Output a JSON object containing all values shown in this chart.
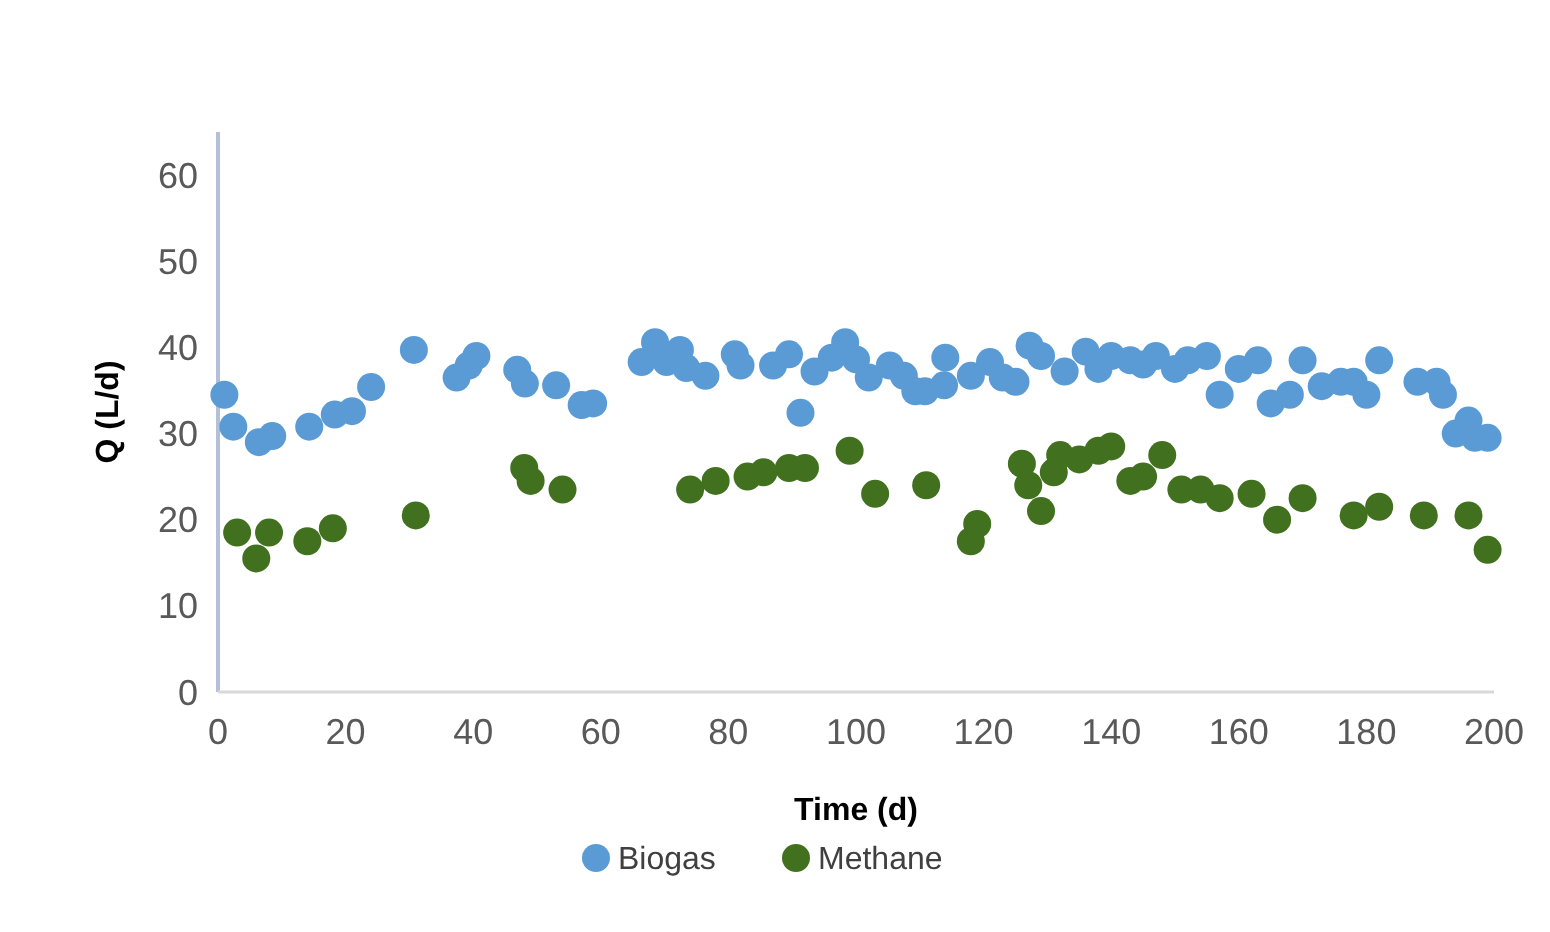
{
  "chart_data": {
    "type": "scatter",
    "xlabel": "Time (d)",
    "ylabel": "Q  (L/d)",
    "xlim": [
      0,
      200
    ],
    "ylim": [
      0,
      65
    ],
    "xticks": [
      0,
      20,
      40,
      60,
      80,
      100,
      120,
      140,
      160,
      180,
      200
    ],
    "yticks": [
      0,
      10,
      20,
      30,
      40,
      50,
      60
    ],
    "grid": false,
    "legend": "bottom",
    "marker": "circle",
    "series": [
      {
        "name": "Biogas",
        "color": "#5b9bd5",
        "x": [
          1,
          2.4,
          6.4,
          8.5,
          14.3,
          18.3,
          21,
          24,
          30.7,
          37.4,
          39.3,
          40.5,
          46.9,
          48.1,
          53,
          57,
          58.8,
          66.4,
          68.5,
          70.3,
          72.4,
          73.4,
          76.4,
          81,
          81.9,
          87,
          89.5,
          91.3,
          93.5,
          96.2,
          98.3,
          100,
          102,
          105.3,
          107.5,
          109.3,
          110.8,
          113.8,
          114,
          118,
          121,
          123,
          125,
          127.2,
          129,
          132.7,
          136,
          138,
          140,
          143,
          145,
          147,
          150,
          152,
          155,
          157,
          160,
          163,
          165,
          168,
          170,
          173,
          176,
          178,
          180,
          182,
          188,
          191,
          192,
          194,
          196,
          197,
          199
        ],
        "values": [
          34.5,
          30.8,
          29,
          29.7,
          30.8,
          32.2,
          32.6,
          35.4,
          39.7,
          36.5,
          37.9,
          39,
          37.4,
          35.8,
          35.6,
          33.3,
          33.5,
          38.3,
          40.6,
          38.3,
          39.7,
          37.6,
          36.7,
          39.2,
          37.9,
          37.9,
          39.2,
          32.4,
          37.2,
          38.8,
          40.6,
          38.6,
          36.5,
          37.9,
          36.7,
          34.9,
          34.9,
          35.6,
          38.8,
          36.7,
          38.3,
          36.5,
          36,
          40.2,
          39,
          37.2,
          39.5,
          37.5,
          39,
          38.5,
          38,
          39,
          37.5,
          38.5,
          39,
          34.5,
          37.5,
          38.5,
          33.5,
          34.5,
          38.5,
          35.5,
          36,
          36,
          34.5,
          38.5,
          36,
          36,
          34.5,
          30,
          31.5,
          29.5,
          29.5
        ]
      },
      {
        "name": "Methane",
        "color": "#41711f",
        "x": [
          3,
          6,
          8,
          14,
          18,
          31,
          48,
          49,
          54,
          74,
          78,
          83,
          85.5,
          89.5,
          92,
          99,
          103,
          111,
          118,
          119,
          126,
          127,
          129,
          131,
          132,
          135,
          138,
          140,
          143,
          145,
          148,
          151,
          154,
          157,
          162,
          166,
          170,
          178,
          182,
          189,
          196,
          199
        ],
        "values": [
          18.5,
          15.5,
          18.5,
          17.5,
          19,
          20.5,
          26,
          24.5,
          23.5,
          23.5,
          24.5,
          25,
          25.5,
          26,
          26,
          28,
          23,
          24,
          17.5,
          19.5,
          26.5,
          24,
          21,
          25.5,
          27.5,
          27,
          28,
          28.5,
          24.5,
          25,
          27.5,
          23.5,
          23.5,
          22.5,
          23,
          20,
          22.5,
          20.5,
          21.5,
          20.5,
          20.5,
          16.5
        ]
      }
    ]
  }
}
